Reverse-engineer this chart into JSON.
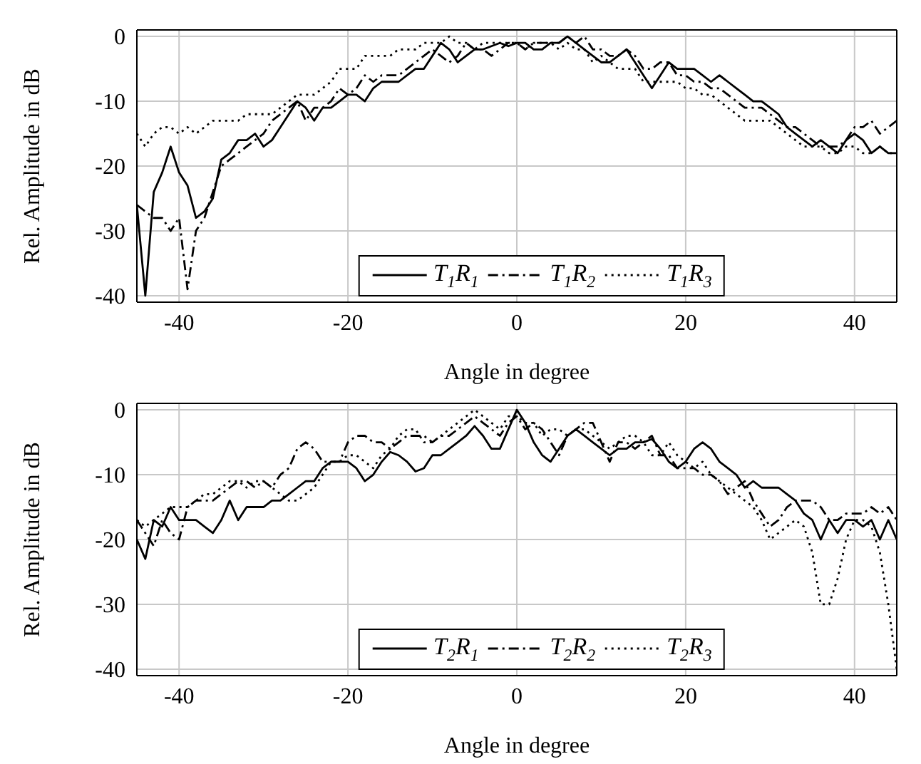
{
  "chart_data": [
    {
      "type": "line",
      "xlabel": "Angle in degree",
      "ylabel": "Rel. Amplitude in dB",
      "x": [
        -45,
        -44,
        -43,
        -42,
        -41,
        -40,
        -39,
        -38,
        -37,
        -36,
        -35,
        -34,
        -33,
        -32,
        -31,
        -30,
        -29,
        -28,
        -27,
        -26,
        -25,
        -24,
        -23,
        -22,
        -21,
        -20,
        -19,
        -18,
        -17,
        -16,
        -15,
        -14,
        -13,
        -12,
        -11,
        -10,
        -9,
        -8,
        -7,
        -6,
        -5,
        -4,
        -3,
        -2,
        -1,
        0,
        1,
        2,
        3,
        4,
        5,
        6,
        7,
        8,
        9,
        10,
        11,
        12,
        13,
        14,
        15,
        16,
        17,
        18,
        19,
        20,
        21,
        22,
        23,
        24,
        25,
        26,
        27,
        28,
        29,
        30,
        31,
        32,
        33,
        34,
        35,
        36,
        37,
        38,
        39,
        40,
        41,
        42,
        43,
        44,
        45
      ],
      "series": [
        {
          "name": "T$_{1}$R$_{1}$",
          "color": "#000000",
          "line_style": "solid",
          "values": [
            -26,
            -40,
            -24,
            -21,
            -17,
            -21,
            -23,
            -28,
            -27,
            -25,
            -19,
            -18,
            -16,
            -16,
            -15,
            -17,
            -16,
            -14,
            -12,
            -10,
            -11,
            -13,
            -11,
            -11,
            -10,
            -9,
            -9,
            -10,
            -8,
            -7,
            -7,
            -7,
            -6,
            -5,
            -5,
            -3,
            -1,
            -2,
            -4,
            -3,
            -2,
            -2,
            -1.5,
            -1,
            -1.5,
            -1,
            -1,
            -2,
            -2,
            -1,
            -1,
            0,
            -1,
            -2,
            -3,
            -4,
            -4,
            -3,
            -2,
            -4,
            -6,
            -8,
            -6,
            -4,
            -5,
            -5,
            -5,
            -6,
            -7,
            -6,
            -7,
            -8,
            -9,
            -10,
            -10,
            -11,
            -12,
            -14,
            -15,
            -16,
            -17,
            -16,
            -17,
            -18,
            -16,
            -15,
            -16,
            -18,
            -17,
            -18,
            -18
          ]
        },
        {
          "name": "T$_{1}$R$_{2}$",
          "color": "#000000",
          "line_style": "dashed",
          "values": [
            -26,
            -27,
            -28,
            -28,
            -30,
            -28,
            -39,
            -30,
            -28,
            -24,
            -20,
            -19,
            -18,
            -17,
            -16,
            -15,
            -13,
            -12,
            -11,
            -10,
            -13,
            -11,
            -11,
            -10,
            -8,
            -9,
            -8,
            -6,
            -7,
            -6,
            -6,
            -6,
            -5,
            -4,
            -3,
            -2,
            -3,
            -4,
            -3,
            -1,
            -2,
            -2,
            -3,
            -2,
            -1,
            -1,
            -2,
            -1,
            -1,
            -1,
            -1,
            0,
            -1,
            0,
            -2,
            -2,
            -3,
            -3,
            -2,
            -3,
            -5,
            -5,
            -4,
            -4,
            -6,
            -6,
            -7,
            -7,
            -8,
            -8,
            -9,
            -10,
            -11,
            -11,
            -11,
            -12,
            -13,
            -14,
            -14,
            -15,
            -16,
            -17,
            -17,
            -17,
            -16,
            -14,
            -14,
            -13,
            -15,
            -14,
            -13
          ]
        },
        {
          "name": "T$_{1}$R$_{3}$",
          "color": "#000000",
          "line_style": "dotted",
          "values": [
            -15,
            -17,
            -15,
            -14,
            -14,
            -15,
            -14,
            -15,
            -14,
            -13,
            -13,
            -13,
            -13,
            -12,
            -12,
            -12,
            -12,
            -11,
            -10,
            -9,
            -9,
            -9,
            -8,
            -7,
            -5,
            -5,
            -5,
            -3,
            -3,
            -3,
            -3,
            -2,
            -2,
            -2,
            -1,
            -1,
            -1,
            0,
            -1,
            -1,
            -2,
            -1,
            -1,
            -1,
            -1,
            -1,
            -2,
            -1,
            -1,
            -1,
            -2,
            -1,
            -2,
            -2,
            -4,
            -3,
            -4,
            -5,
            -5,
            -5,
            -7,
            -7,
            -7,
            -7,
            -7,
            -8,
            -8,
            -9,
            -9,
            -10,
            -11,
            -12,
            -13,
            -13,
            -13,
            -13,
            -14,
            -15,
            -16,
            -17,
            -17,
            -17,
            -18,
            -18,
            -17,
            -17,
            -18,
            -18,
            -17,
            -18,
            -18
          ]
        }
      ],
      "xlim": [
        -45,
        45
      ],
      "xticks": [
        -40,
        -20,
        0,
        20,
        40
      ],
      "ylim": [
        -41,
        1
      ],
      "yticks": [
        -40,
        -30,
        -20,
        -10,
        0
      ],
      "grid": true,
      "legend": "bottom"
    },
    {
      "type": "line",
      "xlabel": "Angle in degree",
      "ylabel": "Rel. Amplitude in dB",
      "x": [
        -45,
        -44,
        -43,
        -42,
        -41,
        -40,
        -39,
        -38,
        -37,
        -36,
        -35,
        -34,
        -33,
        -32,
        -31,
        -30,
        -29,
        -28,
        -27,
        -26,
        -25,
        -24,
        -23,
        -22,
        -21,
        -20,
        -19,
        -18,
        -17,
        -16,
        -15,
        -14,
        -13,
        -12,
        -11,
        -10,
        -9,
        -8,
        -7,
        -6,
        -5,
        -4,
        -3,
        -2,
        -1,
        0,
        1,
        2,
        3,
        4,
        5,
        6,
        7,
        8,
        9,
        10,
        11,
        12,
        13,
        14,
        15,
        16,
        17,
        18,
        19,
        20,
        21,
        22,
        23,
        24,
        25,
        26,
        27,
        28,
        29,
        30,
        31,
        32,
        33,
        34,
        35,
        36,
        37,
        38,
        39,
        40,
        41,
        42,
        43,
        44,
        45
      ],
      "series": [
        {
          "name": "T$_{2}$R$_{1}$",
          "color": "#000000",
          "line_style": "solid",
          "values": [
            -20,
            -23,
            -17,
            -18,
            -15,
            -17,
            -17,
            -17,
            -18,
            -19,
            -17,
            -14,
            -17,
            -15,
            -15,
            -15,
            -14,
            -14,
            -13,
            -12,
            -11,
            -11,
            -9,
            -8,
            -8,
            -8,
            -9,
            -11,
            -10,
            -8,
            -6.5,
            -7,
            -8,
            -9.5,
            -9,
            -7,
            -7,
            -6,
            -5,
            -4,
            -2.5,
            -4,
            -6,
            -6,
            -3,
            0,
            -2,
            -5,
            -7,
            -8,
            -6,
            -4,
            -3,
            -4,
            -5,
            -6,
            -7,
            -6,
            -6,
            -5,
            -5,
            -4.5,
            -6,
            -8,
            -9,
            -8,
            -6,
            -5,
            -6,
            -8,
            -9,
            -10,
            -12,
            -11,
            -12,
            -12,
            -12,
            -13,
            -14,
            -16,
            -17,
            -20,
            -17,
            -19,
            -17,
            -17,
            -18,
            -17,
            -20,
            -17,
            -20
          ]
        },
        {
          "name": "T$_{2}$R$_{2}$",
          "color": "#000000",
          "line_style": "dashed",
          "values": [
            -17,
            -19,
            -21,
            -17,
            -19,
            -20,
            -15,
            -14,
            -14,
            -14,
            -13,
            -12,
            -11,
            -11,
            -12,
            -11,
            -12,
            -10,
            -9,
            -6,
            -5,
            -6,
            -8,
            -8,
            -8,
            -5,
            -4,
            -4,
            -5,
            -5,
            -6,
            -5,
            -4,
            -4,
            -4,
            -5,
            -4,
            -4,
            -3,
            -2,
            -1,
            -2,
            -3,
            -4,
            -2,
            -1,
            -3,
            -2,
            -3,
            -5,
            -7,
            -4,
            -3,
            -2,
            -2,
            -5,
            -8,
            -5,
            -5,
            -6,
            -5,
            -4,
            -7,
            -7,
            -9,
            -9,
            -9,
            -10,
            -10,
            -11,
            -13,
            -12,
            -11,
            -14,
            -16,
            -18,
            -17,
            -15,
            -14,
            -14,
            -14,
            -15,
            -17,
            -17,
            -16,
            -16,
            -16,
            -15,
            -16,
            -15,
            -17
          ]
        },
        {
          "name": "T$_{2}$R$_{3}$",
          "color": "#000000",
          "line_style": "dotted",
          "values": [
            -17,
            -18,
            -17,
            -16,
            -15,
            -15,
            -15,
            -14,
            -13,
            -13,
            -12,
            -11,
            -11,
            -12,
            -11,
            -11,
            -12,
            -13,
            -14,
            -14,
            -13,
            -12,
            -10,
            -8,
            -8,
            -7,
            -7,
            -8,
            -9,
            -7,
            -6,
            -4,
            -3,
            -3,
            -5,
            -5,
            -4,
            -3,
            -2,
            -1,
            0,
            -1,
            -2,
            -3,
            -1,
            -1,
            -2,
            -2,
            -4,
            -3,
            -3,
            -4,
            -3,
            -3,
            -4,
            -5,
            -6,
            -5,
            -4,
            -4,
            -5,
            -7,
            -7,
            -5,
            -7,
            -8,
            -9,
            -8,
            -10,
            -11,
            -12,
            -13,
            -14,
            -15,
            -17,
            -20,
            -19,
            -18,
            -17,
            -18,
            -22,
            -30,
            -30,
            -26,
            -20,
            -17,
            -17,
            -18,
            -22,
            -30,
            -40
          ]
        }
      ],
      "xlim": [
        -45,
        45
      ],
      "xticks": [
        -40,
        -20,
        0,
        20,
        40
      ],
      "ylim": [
        -41,
        1
      ],
      "yticks": [
        -40,
        -30,
        -20,
        -10,
        0
      ],
      "grid": true,
      "legend": "bottom"
    }
  ]
}
